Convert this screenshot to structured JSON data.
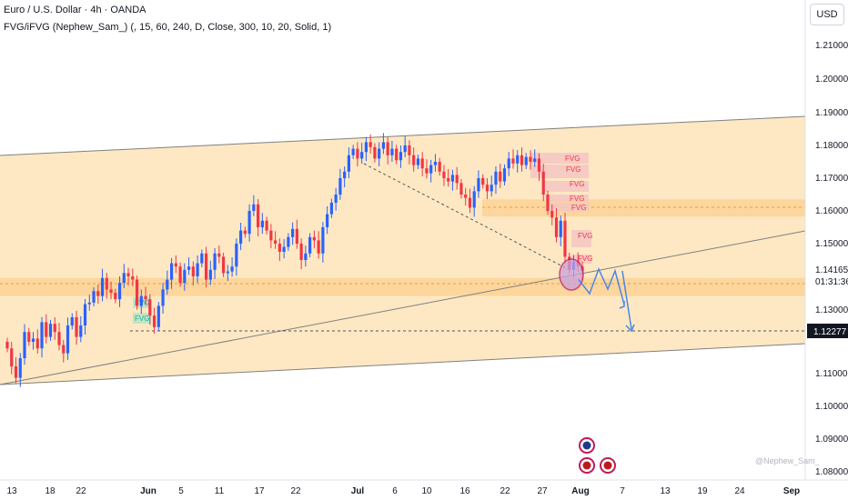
{
  "header": {
    "title": "Euro / U.S. Dollar · 4h · OANDA",
    "indicator": "FVG/iFVG (Nephew_Sam_) (, 15, 60, 240, D, Close, 300, 10, 20, Solid, 1)"
  },
  "currency_button": "USD",
  "watermark": "@Nephew_Sam_",
  "colors": {
    "bull": "#2962ff",
    "bear": "#f23645",
    "band": "#fde4b8",
    "zone": "#fbcf8c",
    "fvg_bear": "#f5c6c4",
    "fvg_bull": "#b8e6c8",
    "projection": "#4a86e8",
    "event_icon": "#c2185b"
  },
  "chart_data": {
    "type": "candlestick",
    "symbol": "EURUSD",
    "timeframe": "4h",
    "y_ticks": [
      "1.21000",
      "1.20000",
      "1.19000",
      "1.18000",
      "1.17000",
      "1.16000",
      "1.15000",
      "1.13000",
      "1.11000",
      "1.10000",
      "1.09000",
      "1.08000"
    ],
    "x_ticks": [
      "13",
      "18",
      "22",
      "Jun",
      "5",
      "11",
      "17",
      "22",
      "Jul",
      "6",
      "10",
      "16",
      "22",
      "27",
      "Aug",
      "7",
      "13",
      "19",
      "24",
      "Sep"
    ],
    "y_range": [
      1.075,
      1.222
    ],
    "current_price": "1.14165",
    "countdown": "01:31:36",
    "target_price": "1.12277",
    "labels": {
      "fvg_bear": [
        "FVG",
        "FVG",
        "FVG",
        "FVG",
        "FVG",
        "FVG",
        "FVG"
      ],
      "fvg_bull": [
        "FVG",
        "FVG"
      ]
    },
    "channel": {
      "upper": [
        [
          1.177,
          1.1895
        ]
      ],
      "lower": [
        [
          1.106,
          1.1175
        ]
      ]
    },
    "rising_trendline": [
      1.106,
      1.153
    ],
    "support_zone": [
      1.134,
      1.1395
    ],
    "resistance_zone": [
      1.1583,
      1.1635
    ],
    "dashed_trendline": [
      1.178,
      1.1415
    ],
    "target_line": 1.12277,
    "projection_path": [
      1.139,
      1.1425,
      1.137,
      1.1425,
      1.138,
      1.1425,
      1.131,
      1.123
    ],
    "candles_ohlc_close": [
      1.118,
      1.1125,
      1.109,
      1.115,
      1.123,
      1.12,
      1.121,
      1.118,
      1.126,
      1.1215,
      1.1255,
      1.123,
      1.119,
      1.1165,
      1.125,
      1.1275,
      1.1215,
      1.125,
      1.1315,
      1.132,
      1.1355,
      1.134,
      1.1395,
      1.136,
      1.135,
      1.133,
      1.138,
      1.141,
      1.14,
      1.139,
      1.131,
      1.134,
      1.133,
      1.128,
      1.1245,
      1.131,
      1.136,
      1.139,
      1.144,
      1.143,
      1.138,
      1.142,
      1.143,
      1.14,
      1.144,
      1.147,
      1.139,
      1.142,
      1.147,
      1.146,
      1.141,
      1.1415,
      1.143,
      1.15,
      1.154,
      1.153,
      1.16,
      1.162,
      1.155,
      1.157,
      1.154,
      1.151,
      1.15,
      1.1475,
      1.149,
      1.152,
      1.1545,
      1.15,
      1.145,
      1.147,
      1.152,
      1.151,
      1.147,
      1.155,
      1.159,
      1.1625,
      1.165,
      1.17,
      1.172,
      1.177,
      1.179,
      1.176,
      1.178,
      1.181,
      1.1795,
      1.176,
      1.179,
      1.181,
      1.177,
      1.179,
      1.1755,
      1.178,
      1.18,
      1.177,
      1.174,
      1.176,
      1.173,
      1.1715,
      1.174,
      1.175,
      1.172,
      1.17,
      1.169,
      1.171,
      1.1685,
      1.165,
      1.164,
      1.161,
      1.166,
      1.17,
      1.168,
      1.166,
      1.168,
      1.172,
      1.169,
      1.173,
      1.176,
      1.1745,
      1.177,
      1.174,
      1.1765,
      1.175,
      1.176,
      1.172,
      1.165,
      1.16,
      1.158,
      1.152,
      1.157,
      1.146,
      1.142,
      1.1445,
      1.143,
      1.1416
    ]
  }
}
